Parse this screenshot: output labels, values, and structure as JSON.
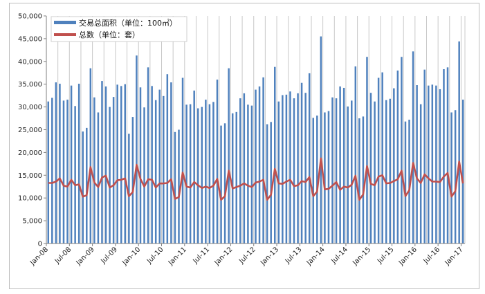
{
  "chart_data": {
    "type": "bar",
    "title": "",
    "xlabel": "",
    "ylabel": "",
    "ylim": [
      0,
      50000
    ],
    "ytick_step": 5000,
    "ytick_labels": [
      "0",
      "5,000",
      "10,000",
      "15,000",
      "20,000",
      "25,000",
      "30,000",
      "35,000",
      "40,000",
      "45,000",
      "50,000"
    ],
    "grid": "vertical",
    "legend_position": "top-left",
    "x_start": "2008-01",
    "xtick_labels": [
      "Jan-08",
      "Jul-08",
      "Jan-09",
      "Jul-09",
      "Jan-10",
      "Jul-10",
      "Jan-11",
      "Jul-11",
      "Jan-12",
      "Jul-12",
      "Jan-13",
      "Jul-13",
      "Jan-14",
      "Jul-14",
      "Jan-15",
      "Jul-15",
      "Jan-16",
      "Jul-16",
      "Jan-17"
    ],
    "series": [
      {
        "name": "交易总面积（单位：100㎡）",
        "type": "bar",
        "color": "#4f81bd",
        "values": [
          31200,
          32000,
          35400,
          35100,
          31400,
          31600,
          34700,
          30200,
          35100,
          24600,
          25400,
          38500,
          32100,
          28800,
          35700,
          34500,
          30000,
          32200,
          34900,
          34600,
          35000,
          24100,
          27800,
          41300,
          34300,
          29900,
          38700,
          34600,
          31500,
          33800,
          32400,
          37200,
          35400,
          24500,
          25000,
          36400,
          30500,
          30600,
          33600,
          29700,
          30000,
          31600,
          30600,
          31100,
          36000,
          25900,
          26400,
          38500,
          28600,
          28900,
          31900,
          33000,
          30500,
          30300,
          33800,
          34500,
          36500,
          26200,
          26700,
          38800,
          31200,
          32600,
          32700,
          33400,
          31900,
          33000,
          35300,
          33100,
          37400,
          27600,
          28100,
          45500,
          28800,
          29100,
          32100,
          31900,
          34500,
          34200,
          30100,
          31400,
          38900,
          27500,
          27900,
          41000,
          33100,
          31200,
          36400,
          37600,
          31500,
          31800,
          34100,
          38000,
          41000,
          26800,
          27200,
          42200,
          34800,
          30600,
          38200,
          34700,
          34900,
          34700,
          33900,
          38300,
          38700,
          28800,
          29300,
          44400,
          31600
        ]
      },
      {
        "name": "总数（单位：套）",
        "type": "line",
        "color": "#c0504d",
        "values": [
          13300,
          13300,
          13600,
          14300,
          12700,
          12500,
          14000,
          12800,
          13000,
          10300,
          10600,
          16800,
          13400,
          12400,
          14500,
          14900,
          12300,
          12800,
          13900,
          14000,
          14300,
          10400,
          11300,
          17300,
          14200,
          12500,
          14100,
          14000,
          12300,
          13200,
          13200,
          13300,
          14100,
          9800,
          10200,
          15600,
          12500,
          12300,
          13500,
          12800,
          12200,
          12500,
          12200,
          12700,
          14200,
          9600,
          10400,
          16000,
          12100,
          12400,
          12700,
          13200,
          12700,
          12400,
          13400,
          13600,
          14000,
          9600,
          10700,
          16400,
          13200,
          13100,
          13600,
          14000,
          12600,
          12800,
          13700,
          13500,
          14600,
          10400,
          11400,
          18700,
          11900,
          12000,
          12700,
          13500,
          11800,
          12500,
          12300,
          12900,
          14900,
          9600,
          10800,
          17000,
          13100,
          12800,
          14700,
          15000,
          13200,
          13300,
          13700,
          14100,
          16000,
          10400,
          11700,
          17700,
          14300,
          13300,
          15200,
          14300,
          13600,
          13600,
          13500,
          14700,
          15500,
          10300,
          11500,
          18000,
          13200
        ]
      }
    ]
  }
}
